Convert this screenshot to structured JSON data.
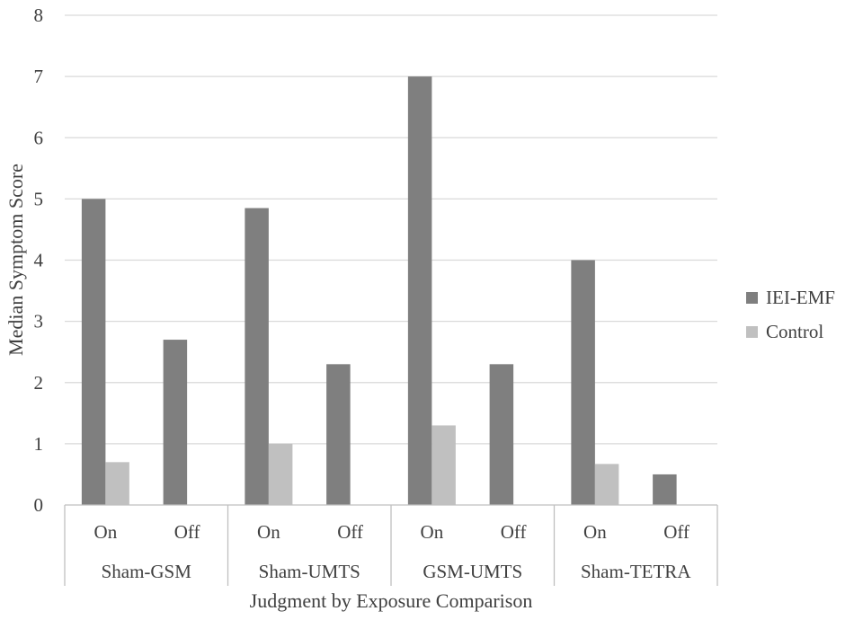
{
  "chart_data": {
    "type": "bar",
    "title": "",
    "xlabel": "Judgment by Exposure Comparison",
    "ylabel": "Median Symptom Score",
    "ylim": [
      0,
      8
    ],
    "yticks": [
      "0",
      "1",
      "2",
      "3",
      "4",
      "5",
      "6",
      "7",
      "8"
    ],
    "grid": true,
    "legend_position": "right",
    "groups": [
      "Sham-GSM",
      "Sham-UMTS",
      "GSM-UMTS",
      "Sham-TETRA"
    ],
    "categories": [
      "On",
      "Off",
      "On",
      "Off",
      "On",
      "Off",
      "On",
      "Off"
    ],
    "series": [
      {
        "name": "IEI-EMF",
        "color": "#7f7f7f",
        "values": [
          5.0,
          2.7,
          4.85,
          2.3,
          7.0,
          2.3,
          4.0,
          0.5
        ]
      },
      {
        "name": "Control",
        "color": "#c0c0c0",
        "values": [
          0.7,
          0,
          1.0,
          0,
          1.3,
          0,
          0.67,
          0
        ]
      }
    ]
  }
}
